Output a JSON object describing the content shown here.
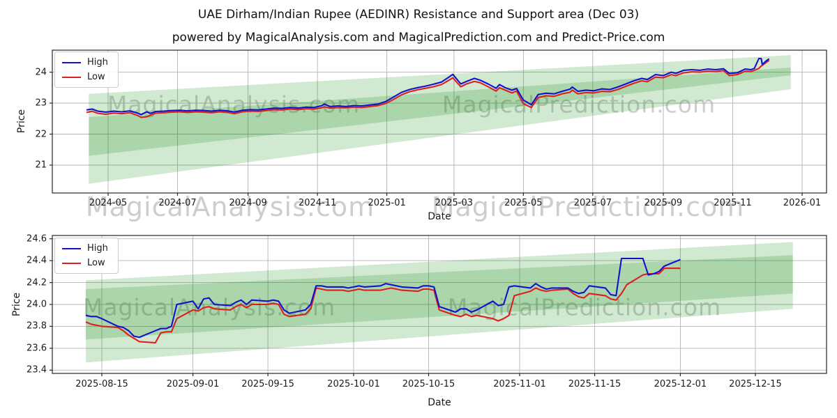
{
  "title": "UAE Dirham/Indian Rupee (AEDINR) Resistance and Support area (Dec 03)",
  "subtitle": "powered by MagicalAnalysis.com and MagicalPrediction.com and Predict-Price.com",
  "colors": {
    "high": "#1212cd",
    "low": "#dc2020",
    "band": "#008000",
    "grid": "#b4b4b4",
    "axis": "#262626",
    "watermark": "#8a8a8a"
  },
  "legend": {
    "items": [
      {
        "label": "High",
        "color": "high"
      },
      {
        "label": "Low",
        "color": "low"
      }
    ]
  },
  "figure_watermarks": [
    "MagicalAnalysis.com",
    "MagicalPrediction.com"
  ],
  "chart_data": [
    {
      "type": "line",
      "xlabel": "Date",
      "ylabel": "Price",
      "legend_position": "upper left",
      "grid": true,
      "ylim": [
        20.1,
        24.71
      ],
      "y_ticks": [
        [
          21,
          "21"
        ],
        [
          22,
          "22"
        ],
        [
          23,
          "23"
        ],
        [
          24,
          "24"
        ]
      ],
      "x_ticks": [
        [
          "2024-05-01",
          "2024-05"
        ],
        [
          "2024-07-01",
          "2024-07"
        ],
        [
          "2024-09-01",
          "2024-09"
        ],
        [
          "2024-11-01",
          "2024-11"
        ],
        [
          "2025-01-01",
          "2025-01"
        ],
        [
          "2025-03-01",
          "2025-03"
        ],
        [
          "2025-05-01",
          "2025-05"
        ],
        [
          "2025-07-01",
          "2025-07"
        ],
        [
          "2025-09-01",
          "2025-09"
        ],
        [
          "2025-11-01",
          "2025-11"
        ],
        [
          "2026-01-01",
          "2026-01"
        ]
      ],
      "series_names": [
        "High",
        "Low"
      ],
      "watermarks": [
        "MagicalAnalysis.com",
        "MagicalPrediction.com"
      ],
      "bands": [
        {
          "name": "resistance area",
          "start": "2024-04-14",
          "end": "2025-12-22",
          "top_start": 23.3,
          "top_end": 24.55,
          "bottom_start": 21.3,
          "bottom_end": 23.9
        },
        {
          "name": "support area",
          "start": "2024-04-14",
          "end": "2025-12-22",
          "top_start": 22.55,
          "top_end": 24.15,
          "bottom_start": 20.4,
          "bottom_end": 23.45
        }
      ],
      "rows": [
        [
          "2024-04-12",
          22.78,
          22.7
        ],
        [
          "2024-04-17",
          22.81,
          22.74
        ],
        [
          "2024-04-22",
          22.74,
          22.67
        ],
        [
          "2024-04-29",
          22.71,
          22.64
        ],
        [
          "2024-05-06",
          22.74,
          22.68
        ],
        [
          "2024-05-13",
          22.72,
          22.66
        ],
        [
          "2024-05-20",
          22.75,
          22.69
        ],
        [
          "2024-05-27",
          22.68,
          22.6
        ],
        [
          "2024-05-30",
          22.63,
          22.54
        ],
        [
          "2024-06-04",
          22.72,
          22.56
        ],
        [
          "2024-06-07",
          22.67,
          22.61
        ],
        [
          "2024-06-12",
          22.73,
          22.68
        ],
        [
          "2024-06-19",
          22.74,
          22.69
        ],
        [
          "2024-06-26",
          22.76,
          22.71
        ],
        [
          "2024-07-03",
          22.77,
          22.72
        ],
        [
          "2024-07-10",
          22.75,
          22.7
        ],
        [
          "2024-07-17",
          22.77,
          22.72
        ],
        [
          "2024-07-24",
          22.76,
          22.71
        ],
        [
          "2024-07-31",
          22.74,
          22.69
        ],
        [
          "2024-08-07",
          22.77,
          22.72
        ],
        [
          "2024-08-14",
          22.75,
          22.7
        ],
        [
          "2024-08-20",
          22.71,
          22.66
        ],
        [
          "2024-08-27",
          22.77,
          22.72
        ],
        [
          "2024-09-03",
          22.79,
          22.74
        ],
        [
          "2024-09-10",
          22.78,
          22.73
        ],
        [
          "2024-09-17",
          22.81,
          22.76
        ],
        [
          "2024-09-24",
          22.84,
          22.79
        ],
        [
          "2024-10-01",
          22.83,
          22.78
        ],
        [
          "2024-10-08",
          22.86,
          22.81
        ],
        [
          "2024-10-15",
          22.84,
          22.79
        ],
        [
          "2024-10-22",
          22.87,
          22.82
        ],
        [
          "2024-10-29",
          22.86,
          22.81
        ],
        [
          "2024-11-05",
          22.92,
          22.85
        ],
        [
          "2024-11-07",
          22.97,
          22.88
        ],
        [
          "2024-11-12",
          22.89,
          22.84
        ],
        [
          "2024-11-19",
          22.91,
          22.86
        ],
        [
          "2024-11-26",
          22.89,
          22.85
        ],
        [
          "2024-12-03",
          22.92,
          22.87
        ],
        [
          "2024-12-10",
          22.91,
          22.86
        ],
        [
          "2024-12-17",
          22.94,
          22.89
        ],
        [
          "2024-12-24",
          22.97,
          22.92
        ],
        [
          "2024-12-31",
          23.05,
          22.99
        ],
        [
          "2025-01-07",
          23.2,
          23.12
        ],
        [
          "2025-01-14",
          23.35,
          23.27
        ],
        [
          "2025-01-21",
          23.44,
          23.37
        ],
        [
          "2025-01-28",
          23.5,
          23.43
        ],
        [
          "2025-02-04",
          23.55,
          23.48
        ],
        [
          "2025-02-11",
          23.61,
          23.53
        ],
        [
          "2025-02-18",
          23.68,
          23.6
        ],
        [
          "2025-02-25",
          23.85,
          23.75
        ],
        [
          "2025-02-28",
          23.93,
          23.82
        ],
        [
          "2025-03-07",
          23.62,
          23.53
        ],
        [
          "2025-03-12",
          23.7,
          23.62
        ],
        [
          "2025-03-19",
          23.8,
          23.7
        ],
        [
          "2025-03-24",
          23.74,
          23.66
        ],
        [
          "2025-03-31",
          23.62,
          23.53
        ],
        [
          "2025-04-07",
          23.48,
          23.39
        ],
        [
          "2025-04-10",
          23.6,
          23.5
        ],
        [
          "2025-04-15",
          23.5,
          23.42
        ],
        [
          "2025-04-21",
          23.42,
          23.33
        ],
        [
          "2025-04-25",
          23.47,
          23.39
        ],
        [
          "2025-05-01",
          23.1,
          22.98
        ],
        [
          "2025-05-08",
          22.95,
          22.86
        ],
        [
          "2025-05-14",
          23.28,
          23.18
        ],
        [
          "2025-05-21",
          23.32,
          23.24
        ],
        [
          "2025-05-28",
          23.3,
          23.22
        ],
        [
          "2025-06-04",
          23.38,
          23.3
        ],
        [
          "2025-06-11",
          23.45,
          23.35
        ],
        [
          "2025-06-13",
          23.52,
          23.42
        ],
        [
          "2025-06-18",
          23.38,
          23.3
        ],
        [
          "2025-06-25",
          23.42,
          23.34
        ],
        [
          "2025-07-02",
          23.4,
          23.33
        ],
        [
          "2025-07-09",
          23.46,
          23.38
        ],
        [
          "2025-07-16",
          23.44,
          23.37
        ],
        [
          "2025-07-23",
          23.52,
          23.44
        ],
        [
          "2025-07-30",
          23.62,
          23.54
        ],
        [
          "2025-08-06",
          23.72,
          23.64
        ],
        [
          "2025-08-13",
          23.8,
          23.72
        ],
        [
          "2025-08-18",
          23.76,
          23.69
        ],
        [
          "2025-08-25",
          23.92,
          23.84
        ],
        [
          "2025-09-01",
          23.89,
          23.82
        ],
        [
          "2025-09-08",
          24.0,
          23.92
        ],
        [
          "2025-09-12",
          23.96,
          23.89
        ],
        [
          "2025-09-19",
          24.06,
          23.98
        ],
        [
          "2025-09-26",
          24.08,
          24.01
        ],
        [
          "2025-10-03",
          24.06,
          24.0
        ],
        [
          "2025-10-10",
          24.1,
          24.03
        ],
        [
          "2025-10-17",
          24.08,
          24.02
        ],
        [
          "2025-10-24",
          24.11,
          24.05
        ],
        [
          "2025-10-29",
          23.96,
          23.89
        ],
        [
          "2025-11-05",
          23.98,
          23.92
        ],
        [
          "2025-11-12",
          24.1,
          24.03
        ],
        [
          "2025-11-17",
          24.08,
          24.02
        ],
        [
          "2025-11-20",
          24.12,
          24.06
        ],
        [
          "2025-11-24",
          24.44,
          24.12
        ],
        [
          "2025-11-26",
          24.44,
          24.2
        ],
        [
          "2025-11-27",
          24.25,
          24.22
        ],
        [
          "2025-12-01",
          24.38,
          24.33
        ],
        [
          "2025-12-03",
          24.43,
          24.38
        ]
      ]
    },
    {
      "type": "line",
      "xlabel": "Date",
      "ylabel": "Price",
      "legend_position": "upper left",
      "grid": true,
      "ylim": [
        23.37,
        24.63
      ],
      "y_ticks": [
        [
          23.4,
          "23.4"
        ],
        [
          23.6,
          "23.6"
        ],
        [
          23.8,
          "23.8"
        ],
        [
          24.0,
          "24.0"
        ],
        [
          24.2,
          "24.2"
        ],
        [
          24.4,
          "24.4"
        ],
        [
          24.6,
          "24.6"
        ]
      ],
      "x_ticks": [
        [
          "2025-08-15",
          "2025-08-15"
        ],
        [
          "2025-09-01",
          "2025-09-01"
        ],
        [
          "2025-09-15",
          "2025-09-15"
        ],
        [
          "2025-10-01",
          "2025-10-01"
        ],
        [
          "2025-10-15",
          "2025-10-15"
        ],
        [
          "2025-11-01",
          "2025-11-01"
        ],
        [
          "2025-11-15",
          "2025-11-15"
        ],
        [
          "2025-12-01",
          "2025-12-01"
        ],
        [
          "2025-12-15",
          "2025-12-15"
        ]
      ],
      "series_names": [
        "High",
        "Low"
      ],
      "watermarks": [
        "MagicalAnalysis.com",
        "MagicalPrediction.com"
      ],
      "bands": [
        {
          "name": "resistance area",
          "start": "2025-08-12",
          "end": "2025-12-22",
          "top_start": 24.22,
          "top_end": 24.57,
          "bottom_start": 23.68,
          "bottom_end": 24.1
        },
        {
          "name": "support area",
          "start": "2025-08-12",
          "end": "2025-12-22",
          "top_start": 24.14,
          "top_end": 24.45,
          "bottom_start": 23.47,
          "bottom_end": 23.96
        }
      ],
      "rows": [
        [
          "2025-08-12",
          23.9,
          23.84
        ],
        [
          "2025-08-13",
          23.89,
          23.82
        ],
        [
          "2025-08-14",
          23.89,
          23.81
        ],
        [
          "2025-08-15",
          23.87,
          23.8
        ],
        [
          "2025-08-18",
          23.8,
          23.79
        ],
        [
          "2025-08-19",
          23.79,
          23.76
        ],
        [
          "2025-08-20",
          23.76,
          23.72
        ],
        [
          "2025-08-21",
          23.71,
          23.69
        ],
        [
          "2025-08-22",
          23.7,
          23.66
        ],
        [
          "2025-08-25",
          23.76,
          23.65
        ],
        [
          "2025-08-26",
          23.78,
          23.74
        ],
        [
          "2025-08-27",
          23.78,
          23.75
        ],
        [
          "2025-08-28",
          23.8,
          23.75
        ],
        [
          "2025-08-29",
          24.0,
          23.87
        ],
        [
          "2025-09-01",
          24.03,
          23.95
        ],
        [
          "2025-09-02",
          23.96,
          23.94
        ],
        [
          "2025-09-03",
          24.05,
          23.97
        ],
        [
          "2025-09-04",
          24.06,
          23.98
        ],
        [
          "2025-09-05",
          24.0,
          23.96
        ],
        [
          "2025-09-08",
          23.99,
          23.95
        ],
        [
          "2025-09-09",
          24.02,
          23.98
        ],
        [
          "2025-09-10",
          24.04,
          24.0
        ],
        [
          "2025-09-11",
          24.0,
          23.97
        ],
        [
          "2025-09-12",
          24.04,
          24.0
        ],
        [
          "2025-09-15",
          24.03,
          24.0
        ],
        [
          "2025-09-16",
          24.04,
          24.01
        ],
        [
          "2025-09-17",
          24.03,
          24.0
        ],
        [
          "2025-09-18",
          23.95,
          23.91
        ],
        [
          "2025-09-19",
          23.92,
          23.89
        ],
        [
          "2025-09-22",
          23.95,
          23.91
        ],
        [
          "2025-09-23",
          24.0,
          23.96
        ],
        [
          "2025-09-24",
          24.17,
          24.15
        ],
        [
          "2025-09-25",
          24.17,
          24.14
        ],
        [
          "2025-09-26",
          24.16,
          24.13
        ],
        [
          "2025-09-29",
          24.16,
          24.13
        ],
        [
          "2025-09-30",
          24.15,
          24.12
        ],
        [
          "2025-10-01",
          24.16,
          24.13
        ],
        [
          "2025-10-02",
          24.17,
          24.14
        ],
        [
          "2025-10-03",
          24.16,
          24.13
        ],
        [
          "2025-10-06",
          24.17,
          24.13
        ],
        [
          "2025-10-07",
          24.19,
          24.14
        ],
        [
          "2025-10-08",
          24.18,
          24.15
        ],
        [
          "2025-10-09",
          24.17,
          24.14
        ],
        [
          "2025-10-10",
          24.16,
          24.13
        ],
        [
          "2025-10-13",
          24.15,
          24.12
        ],
        [
          "2025-10-14",
          24.17,
          24.14
        ],
        [
          "2025-10-15",
          24.17,
          24.14
        ],
        [
          "2025-10-16",
          24.16,
          24.13
        ],
        [
          "2025-10-17",
          23.98,
          23.95
        ],
        [
          "2025-10-20",
          23.93,
          23.9
        ],
        [
          "2025-10-21",
          23.96,
          23.89
        ],
        [
          "2025-10-22",
          23.96,
          23.91
        ],
        [
          "2025-10-23",
          23.93,
          23.89
        ],
        [
          "2025-10-24",
          23.95,
          23.9
        ],
        [
          "2025-10-27",
          24.03,
          23.87
        ],
        [
          "2025-10-28",
          23.99,
          23.85
        ],
        [
          "2025-10-29",
          24.0,
          23.87
        ],
        [
          "2025-10-30",
          24.16,
          23.9
        ],
        [
          "2025-10-31",
          24.17,
          24.08
        ],
        [
          "2025-11-03",
          24.15,
          24.12
        ],
        [
          "2025-11-04",
          24.19,
          24.15
        ],
        [
          "2025-11-05",
          24.16,
          24.13
        ],
        [
          "2025-11-06",
          24.14,
          24.12
        ],
        [
          "2025-11-07",
          24.15,
          24.13
        ],
        [
          "2025-11-10",
          24.15,
          24.14
        ],
        [
          "2025-11-11",
          24.12,
          24.1
        ],
        [
          "2025-11-12",
          24.1,
          24.07
        ],
        [
          "2025-11-13",
          24.11,
          24.06
        ],
        [
          "2025-11-14",
          24.17,
          24.1
        ],
        [
          "2025-11-17",
          24.15,
          24.08
        ],
        [
          "2025-11-18",
          24.09,
          24.05
        ],
        [
          "2025-11-19",
          24.08,
          24.04
        ],
        [
          "2025-11-20",
          24.42,
          24.1
        ],
        [
          "2025-11-21",
          24.42,
          24.18
        ],
        [
          "2025-11-24",
          24.42,
          24.27
        ],
        [
          "2025-11-25",
          24.27,
          24.28
        ],
        [
          "2025-11-26",
          24.28,
          24.28
        ],
        [
          "2025-11-27",
          24.3,
          24.28
        ],
        [
          "2025-11-28",
          24.35,
          24.33
        ],
        [
          "2025-12-01",
          24.41,
          24.33
        ]
      ]
    }
  ]
}
